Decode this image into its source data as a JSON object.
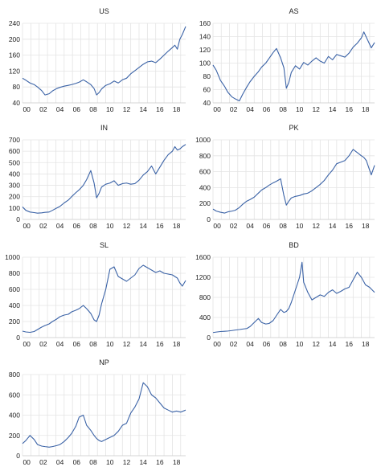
{
  "colors": {
    "line": "#3a62a6",
    "grid": "#e4e4e4",
    "text": "#222222"
  },
  "chart_data": [
    {
      "type": "line",
      "title": "US",
      "ylim": [
        40,
        240
      ],
      "yticks": [
        "40",
        "80",
        "120",
        "160",
        "200",
        "240"
      ],
      "ytick_values": [
        40,
        80,
        120,
        160,
        200,
        240
      ],
      "xticks": [
        "00",
        "02",
        "04",
        "06",
        "08",
        "10",
        "12",
        "14",
        "16",
        "18"
      ],
      "x_range": [
        2000,
        2019.6
      ],
      "grid": true,
      "series": [
        {
          "x": [
            2000.0,
            2000.4,
            2000.9,
            2001.4,
            2001.8,
            2002.3,
            2002.7,
            2003.2,
            2003.6,
            2004.1,
            2004.5,
            2005.0,
            2005.5,
            2005.9,
            2006.4,
            2006.8,
            2007.3,
            2007.7,
            2008.2,
            2008.6,
            2008.9,
            2009.2,
            2009.5,
            2010.0,
            2010.5,
            2011.0,
            2011.5,
            2012.0,
            2012.5,
            2013.0,
            2013.5,
            2014.0,
            2014.5,
            2015.0,
            2015.5,
            2016.0,
            2016.5,
            2017.0,
            2017.5,
            2018.0,
            2018.3,
            2018.6,
            2018.9,
            2019.2,
            2019.6
          ],
          "values": [
            102,
            97,
            90,
            86,
            80,
            71,
            60,
            63,
            70,
            76,
            79,
            82,
            84,
            86,
            89,
            92,
            98,
            93,
            86,
            76,
            60,
            66,
            75,
            84,
            88,
            95,
            90,
            98,
            102,
            113,
            121,
            129,
            137,
            143,
            145,
            141,
            150,
            160,
            170,
            179,
            185,
            175,
            200,
            212,
            232
          ]
        }
      ]
    },
    {
      "type": "line",
      "title": "AS",
      "ylim": [
        40,
        160
      ],
      "yticks": [
        "40",
        "60",
        "80",
        "100",
        "120",
        "140",
        "160"
      ],
      "ytick_values": [
        40,
        60,
        80,
        100,
        120,
        140,
        160
      ],
      "xticks": [
        "00",
        "02",
        "04",
        "06",
        "08",
        "10",
        "12",
        "14",
        "16",
        "18"
      ],
      "x_range": [
        2000,
        2019.6
      ],
      "grid": true,
      "series": [
        {
          "x": [
            2000.0,
            2000.4,
            2000.9,
            2001.4,
            2001.8,
            2002.3,
            2002.7,
            2003.2,
            2003.6,
            2004.1,
            2004.5,
            2005.0,
            2005.5,
            2005.9,
            2006.4,
            2006.8,
            2007.3,
            2007.7,
            2008.2,
            2008.6,
            2008.9,
            2009.2,
            2009.5,
            2010.0,
            2010.5,
            2011.0,
            2011.5,
            2012.0,
            2012.5,
            2013.0,
            2013.5,
            2014.0,
            2014.5,
            2015.0,
            2015.5,
            2016.0,
            2016.5,
            2017.0,
            2017.5,
            2018.0,
            2018.3,
            2018.6,
            2018.9,
            2019.2,
            2019.6
          ],
          "values": [
            97,
            89,
            74,
            65,
            56,
            49,
            46,
            43,
            53,
            64,
            72,
            80,
            87,
            94,
            100,
            107,
            116,
            122,
            108,
            93,
            62,
            71,
            86,
            96,
            91,
            101,
            97,
            103,
            108,
            103,
            100,
            110,
            105,
            113,
            111,
            109,
            115,
            124,
            130,
            138,
            147,
            139,
            131,
            123,
            131
          ]
        }
      ]
    },
    {
      "type": "line",
      "title": "IN",
      "ylim": [
        0,
        700
      ],
      "yticks": [
        "0",
        "100",
        "200",
        "300",
        "400",
        "500",
        "600",
        "700"
      ],
      "ytick_values": [
        0,
        100,
        200,
        300,
        400,
        500,
        600,
        700
      ],
      "xticks": [
        "00",
        "02",
        "04",
        "06",
        "08",
        "10",
        "12",
        "14",
        "16",
        "18"
      ],
      "x_range": [
        2000,
        2019.6
      ],
      "grid": true,
      "series": [
        {
          "x": [
            2000.0,
            2000.4,
            2000.9,
            2001.4,
            2001.8,
            2002.3,
            2002.7,
            2003.2,
            2003.6,
            2004.1,
            2004.5,
            2005.0,
            2005.5,
            2005.9,
            2006.4,
            2006.8,
            2007.3,
            2007.7,
            2008.2,
            2008.6,
            2008.9,
            2009.2,
            2009.5,
            2010.0,
            2010.5,
            2011.0,
            2011.5,
            2012.0,
            2012.5,
            2013.0,
            2013.5,
            2014.0,
            2014.5,
            2015.0,
            2015.5,
            2016.0,
            2016.5,
            2017.0,
            2017.5,
            2018.0,
            2018.3,
            2018.6,
            2018.9,
            2019.2,
            2019.6
          ],
          "values": [
            110,
            80,
            65,
            60,
            55,
            58,
            62,
            65,
            80,
            100,
            115,
            145,
            170,
            200,
            235,
            260,
            300,
            350,
            430,
            320,
            190,
            230,
            285,
            310,
            320,
            340,
            300,
            315,
            320,
            310,
            315,
            345,
            390,
            420,
            470,
            400,
            460,
            520,
            570,
            600,
            640,
            610,
            620,
            640,
            660
          ]
        }
      ]
    },
    {
      "type": "line",
      "title": "PK",
      "ylim": [
        0,
        1000
      ],
      "yticks": [
        "0",
        "200",
        "400",
        "600",
        "800",
        "1000"
      ],
      "ytick_values": [
        0,
        200,
        400,
        600,
        800,
        1000
      ],
      "xticks": [
        "00",
        "02",
        "04",
        "06",
        "08",
        "10",
        "12",
        "14",
        "16",
        "18"
      ],
      "x_range": [
        2000,
        2019.6
      ],
      "grid": true,
      "series": [
        {
          "x": [
            2000.0,
            2000.4,
            2000.9,
            2001.4,
            2001.8,
            2002.3,
            2002.7,
            2003.2,
            2003.6,
            2004.1,
            2004.5,
            2005.0,
            2005.5,
            2005.9,
            2006.4,
            2006.8,
            2007.3,
            2007.7,
            2008.2,
            2008.6,
            2008.9,
            2009.2,
            2009.5,
            2010.0,
            2010.5,
            2011.0,
            2011.5,
            2012.0,
            2012.5,
            2013.0,
            2013.5,
            2014.0,
            2014.5,
            2015.0,
            2015.5,
            2016.0,
            2016.5,
            2017.0,
            2017.5,
            2018.0,
            2018.3,
            2018.6,
            2018.9,
            2019.2,
            2019.6
          ],
          "values": [
            130,
            105,
            90,
            80,
            95,
            105,
            115,
            150,
            190,
            230,
            250,
            280,
            330,
            370,
            400,
            430,
            460,
            480,
            510,
            300,
            180,
            230,
            270,
            290,
            300,
            320,
            330,
            360,
            400,
            440,
            490,
            560,
            620,
            700,
            720,
            740,
            800,
            880,
            840,
            800,
            780,
            740,
            650,
            560,
            680
          ]
        }
      ]
    },
    {
      "type": "line",
      "title": "SL",
      "ylim": [
        0,
        1000
      ],
      "yticks": [
        "0",
        "200",
        "400",
        "600",
        "800",
        "1000"
      ],
      "ytick_values": [
        0,
        200,
        400,
        600,
        800,
        1000
      ],
      "xticks": [
        "00",
        "02",
        "04",
        "06",
        "08",
        "10",
        "12",
        "14",
        "16",
        "18"
      ],
      "x_range": [
        2000,
        2019.6
      ],
      "grid": true,
      "series": [
        {
          "x": [
            2000.0,
            2000.4,
            2000.9,
            2001.4,
            2001.8,
            2002.3,
            2002.7,
            2003.2,
            2003.6,
            2004.1,
            2004.5,
            2005.0,
            2005.5,
            2005.9,
            2006.4,
            2006.8,
            2007.3,
            2007.7,
            2008.2,
            2008.6,
            2008.9,
            2009.2,
            2009.5,
            2010.0,
            2010.5,
            2011.0,
            2011.5,
            2012.0,
            2012.5,
            2013.0,
            2013.5,
            2014.0,
            2014.5,
            2015.0,
            2015.5,
            2016.0,
            2016.5,
            2017.0,
            2017.5,
            2018.0,
            2018.3,
            2018.6,
            2018.9,
            2019.2,
            2019.6
          ],
          "values": [
            80,
            70,
            65,
            75,
            100,
            130,
            150,
            170,
            200,
            230,
            260,
            280,
            290,
            320,
            340,
            360,
            400,
            360,
            300,
            220,
            200,
            280,
            420,
            600,
            850,
            880,
            760,
            730,
            700,
            740,
            780,
            860,
            900,
            870,
            840,
            810,
            830,
            800,
            790,
            780,
            760,
            740,
            680,
            640,
            710
          ]
        }
      ]
    },
    {
      "type": "line",
      "title": "BD",
      "ylim": [
        0,
        1600
      ],
      "yticks": [
        "0",
        "400",
        "800",
        "1200",
        "1600"
      ],
      "ytick_values": [
        0,
        400,
        800,
        1200,
        1600
      ],
      "xticks": [
        "00",
        "02",
        "04",
        "06",
        "08",
        "10",
        "12",
        "14",
        "16",
        "18"
      ],
      "x_range": [
        2000,
        2019.6
      ],
      "grid": true,
      "series": [
        {
          "x": [
            2000.0,
            2000.4,
            2000.9,
            2001.4,
            2001.8,
            2002.3,
            2002.7,
            2003.2,
            2003.6,
            2004.1,
            2004.5,
            2005.0,
            2005.5,
            2005.9,
            2006.4,
            2006.8,
            2007.3,
            2007.7,
            2008.2,
            2008.6,
            2008.9,
            2009.2,
            2009.5,
            2010.0,
            2010.5,
            2010.8,
            2011.0,
            2011.5,
            2012.0,
            2012.5,
            2013.0,
            2013.5,
            2014.0,
            2014.5,
            2015.0,
            2015.5,
            2016.0,
            2016.5,
            2017.0,
            2017.5,
            2018.0,
            2018.5,
            2019.0,
            2019.6
          ],
          "values": [
            100,
            110,
            120,
            125,
            130,
            140,
            150,
            160,
            170,
            180,
            220,
            300,
            380,
            300,
            270,
            280,
            340,
            440,
            560,
            500,
            520,
            580,
            700,
            950,
            1200,
            1500,
            1100,
            900,
            750,
            800,
            850,
            820,
            900,
            950,
            880,
            920,
            970,
            1000,
            1150,
            1300,
            1200,
            1050,
            1000,
            900
          ]
        }
      ]
    },
    {
      "type": "line",
      "title": "NP",
      "ylim": [
        0,
        800
      ],
      "yticks": [
        "0",
        "200",
        "400",
        "600",
        "800"
      ],
      "ytick_values": [
        0,
        200,
        400,
        600,
        800
      ],
      "xticks": [
        "00",
        "02",
        "04",
        "06",
        "08",
        "10",
        "12",
        "14",
        "16",
        "18"
      ],
      "x_range": [
        2000,
        2019.6
      ],
      "grid": true,
      "series": [
        {
          "x": [
            2000.0,
            2000.4,
            2000.9,
            2001.4,
            2001.8,
            2002.3,
            2002.7,
            2003.2,
            2003.6,
            2004.1,
            2004.5,
            2005.0,
            2005.5,
            2005.9,
            2006.4,
            2006.8,
            2007.3,
            2007.7,
            2008.2,
            2008.6,
            2008.9,
            2009.2,
            2009.5,
            2010.0,
            2010.5,
            2011.0,
            2011.5,
            2012.0,
            2012.5,
            2013.0,
            2013.5,
            2014.0,
            2014.5,
            2015.0,
            2015.5,
            2016.0,
            2016.5,
            2017.0,
            2017.5,
            2018.0,
            2018.5,
            2019.0,
            2019.6
          ],
          "values": [
            120,
            150,
            200,
            160,
            110,
            95,
            90,
            85,
            90,
            100,
            110,
            140,
            180,
            220,
            290,
            380,
            400,
            300,
            250,
            200,
            170,
            150,
            140,
            160,
            180,
            200,
            240,
            300,
            320,
            420,
            480,
            560,
            720,
            680,
            600,
            570,
            520,
            470,
            450,
            430,
            440,
            430,
            450
          ]
        }
      ]
    }
  ]
}
